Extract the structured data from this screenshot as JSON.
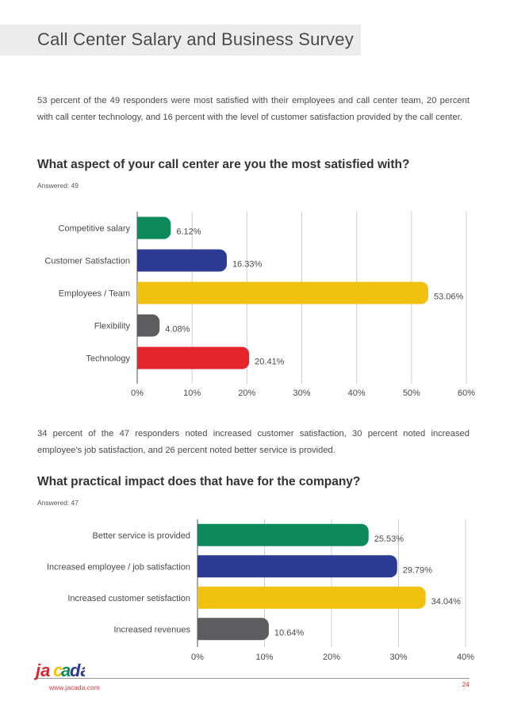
{
  "page": {
    "title": "Call Center Salary and Business Survey",
    "intro_1": "53 percent of the 49 responders were most satisfied with their employees and call center team, 20 percent with call center technology, and 16 percent with the level of customer satisfaction provided by the call center.",
    "intro_2": "34 percent of the 47 responders noted increased customer satisfaction, 30 percent noted increased employee's job satisfaction, and 26 percent noted better service is provided."
  },
  "questions": [
    {
      "heading": "What aspect of your call center are you the most satisfied with?",
      "answered": "Answered: 49"
    },
    {
      "heading": "What practical impact does that have for the company?",
      "answered": "Answered: 47"
    }
  ],
  "chart_data": [
    {
      "type": "bar",
      "orientation": "horizontal",
      "title": "What aspect of your call center are you the most satisfied with?",
      "categories": [
        "Competitive salary",
        "Customer Satisfaction",
        "Employees / Team",
        "Flexibility",
        "Technology"
      ],
      "values": [
        6.12,
        16.33,
        53.06,
        4.08,
        20.41
      ],
      "value_labels": [
        "6.12%",
        "16.33%",
        "53.06%",
        "4.08%",
        "20.41%"
      ],
      "colors": [
        "#0d8a5b",
        "#2b3a92",
        "#f0c10e",
        "#5d5d5f",
        "#e4262c"
      ],
      "xlim": [
        0,
        60
      ],
      "xticks": [
        0,
        10,
        20,
        30,
        40,
        50,
        60
      ],
      "xtick_labels": [
        "0%",
        "10%",
        "20%",
        "30%",
        "40%",
        "50%",
        "60%"
      ],
      "grid": true
    },
    {
      "type": "bar",
      "orientation": "horizontal",
      "title": "What practical impact does that have for the company?",
      "categories": [
        "Better service is provided",
        "Increased employee / job satisfaction",
        "Increased customer setisfaction",
        "Increased revenues"
      ],
      "values": [
        25.53,
        29.79,
        34.04,
        10.64
      ],
      "value_labels": [
        "25.53%",
        "29.79%",
        "34.04%",
        "10.64%"
      ],
      "colors": [
        "#0d8a5b",
        "#2b3a92",
        "#f0c10e",
        "#5d5d5f"
      ],
      "xlim": [
        0,
        40
      ],
      "xticks": [
        0,
        10,
        20,
        30,
        40
      ],
      "xtick_labels": [
        "0%",
        "10%",
        "20%",
        "30%",
        "40%"
      ],
      "grid": true
    }
  ],
  "footer": {
    "logo_text": "jacada",
    "url": "www.jacada.com",
    "page_number": "24"
  }
}
